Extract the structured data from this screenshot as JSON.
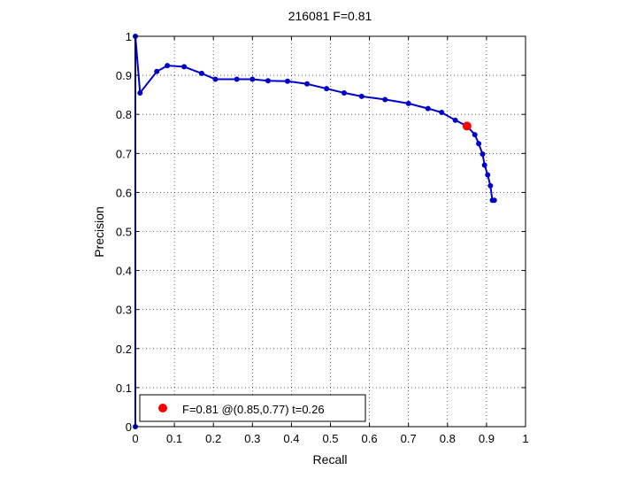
{
  "chart_data": {
    "type": "line",
    "title": "216081 F=0.81",
    "xlabel": "Recall",
    "ylabel": "Precision",
    "xlim": [
      0,
      1
    ],
    "ylim": [
      0,
      1
    ],
    "xticks": [
      "0",
      "0.1",
      "0.2",
      "0.3",
      "0.4",
      "0.5",
      "0.6",
      "0.7",
      "0.8",
      "0.9",
      "1"
    ],
    "yticks": [
      "0",
      "0.1",
      "0.2",
      "0.3",
      "0.4",
      "0.5",
      "0.6",
      "0.7",
      "0.8",
      "0.9",
      "1"
    ],
    "grid": true,
    "legend_position": "bottom-left",
    "series": [
      {
        "color": "#0000cc",
        "x": [
          0.0,
          0.0,
          0.012,
          0.055,
          0.082,
          0.125,
          0.17,
          0.205,
          0.26,
          0.3,
          0.34,
          0.39,
          0.44,
          0.49,
          0.535,
          0.58,
          0.64,
          0.7,
          0.75,
          0.785,
          0.82,
          0.85,
          0.87,
          0.88,
          0.89,
          0.895,
          0.903,
          0.91,
          0.915,
          0.92
        ],
        "y": [
          0.0,
          1.0,
          0.855,
          0.91,
          0.925,
          0.922,
          0.905,
          0.89,
          0.89,
          0.89,
          0.886,
          0.885,
          0.878,
          0.866,
          0.855,
          0.846,
          0.838,
          0.828,
          0.815,
          0.805,
          0.785,
          0.77,
          0.748,
          0.725,
          0.698,
          0.67,
          0.645,
          0.617,
          0.58,
          0.58
        ]
      }
    ],
    "best_point": {
      "x": 0.85,
      "y": 0.77,
      "color": "#ff0000",
      "label": "F=0.81 @(0.85,0.77) t=0.26"
    }
  }
}
